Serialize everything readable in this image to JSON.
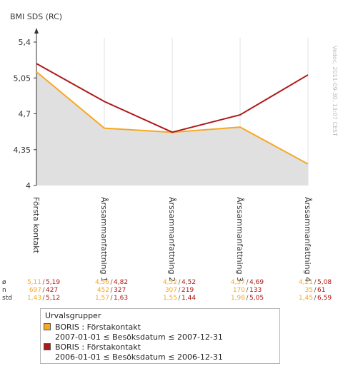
{
  "chart_data": {
    "type": "line",
    "title": "BMI SDS (RC)",
    "categories": [
      "Första kontakt",
      "Årssammanfattning 1",
      "Årssammanfattning 2",
      "Årssammanfattning 3",
      "Årssammanfattning 4"
    ],
    "ylim": [
      4,
      5.4
    ],
    "yticks": [
      "5,4",
      "5,05",
      "4,7",
      "4,35",
      "4"
    ],
    "ytick_values": [
      5.4,
      5.05,
      4.7,
      4.35,
      4.0
    ],
    "grid": "vertical",
    "series": [
      {
        "color": "#f7a823",
        "fill": "#e0e0e0",
        "values": [
          5.11,
          4.56,
          4.52,
          4.57,
          4.21
        ],
        "mean_labels": [
          "5,11",
          "4,56",
          "4,52",
          "4,57",
          "4,21"
        ],
        "n_labels": [
          "697",
          "452",
          "307",
          "170",
          "35"
        ],
        "std_labels": [
          "1,43",
          "1,57",
          "1,55",
          "1,98",
          "1,45"
        ]
      },
      {
        "color": "#b01818",
        "values": [
          5.19,
          4.82,
          4.52,
          4.69,
          5.08
        ],
        "mean_labels": [
          "5,19",
          "4,82",
          "4,52",
          "4,69",
          "5,08"
        ],
        "n_labels": [
          "427",
          "327",
          "219",
          "133",
          "61"
        ],
        "std_labels": [
          "5,12",
          "1,63",
          "1,44",
          "5,05",
          "6,59"
        ]
      }
    ],
    "stat_row_labels": [
      "ø",
      "n",
      "std"
    ],
    "side_note": "Vedoc, 2011-09-30, 13:07 CEST"
  },
  "legend": {
    "title": "Urvalsgrupper",
    "items": [
      {
        "color": "#f7a823",
        "line1": "BORIS : Förstakontakt",
        "line2": "2007-01-01 ≤ Besöksdatum ≤ 2007-12-31"
      },
      {
        "color": "#b01818",
        "line1": "BORIS : Förstakontakt",
        "line2": "2006-01-01 ≤ Besöksdatum ≤ 2006-12-31"
      }
    ]
  }
}
